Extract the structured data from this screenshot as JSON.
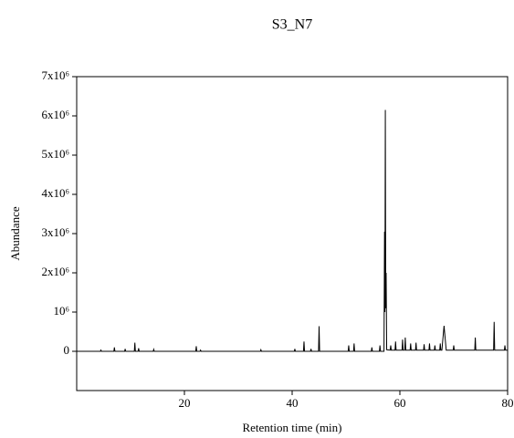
{
  "chart_data": {
    "type": "line",
    "title": "S3_N7",
    "x_label": "Retention time (min)",
    "y_label": "Abundance",
    "color": "#000000",
    "x": [
      0,
      4.4,
      4.5,
      4.6,
      6.9,
      7,
      7.1,
      8.9,
      9,
      9.1,
      10.7,
      10.8,
      10.9,
      11.4,
      11.5,
      11.6,
      14.2,
      14.3,
      14.4,
      22.1,
      22.2,
      22.3,
      22.9,
      23,
      23.1,
      34.1,
      34.2,
      34.3,
      40.4,
      40.5,
      40.6,
      42.1,
      42.2,
      42.3,
      43.4,
      43.5,
      43.6,
      44.9,
      45,
      45.1,
      50.4,
      50.5,
      50.6,
      51.4,
      51.5,
      51.6,
      54.7,
      54.8,
      54.9,
      56.2,
      56.3,
      56.4,
      57.05,
      57.15,
      57.22,
      57.3,
      57.38,
      57.45,
      57.55,
      58.2,
      58.3,
      58.4,
      59.1,
      59.2,
      59.3,
      60.4,
      60.5,
      60.6,
      60.9,
      61,
      61.1,
      61.9,
      62,
      62.1,
      62.9,
      63,
      63.1,
      64.4,
      64.5,
      64.6,
      65.4,
      65.5,
      65.6,
      66.4,
      66.5,
      66.6,
      67.4,
      67.5,
      67.6,
      67.8,
      68.2,
      68.6,
      69.9,
      70,
      70.1,
      73.9,
      74,
      74.1,
      77.4,
      77.5,
      77.6,
      79.4,
      79.5,
      79.6,
      80
    ],
    "values": [
      0,
      0,
      30000,
      0,
      0,
      100000,
      0,
      0,
      60000,
      0,
      0,
      220000,
      0,
      0,
      80000,
      0,
      0,
      50000,
      0,
      0,
      130000,
      0,
      0,
      30000,
      0,
      0,
      40000,
      0,
      0,
      60000,
      0,
      0,
      250000,
      0,
      0,
      60000,
      0,
      0,
      640000,
      0,
      0,
      150000,
      0,
      0,
      200000,
      0,
      0,
      100000,
      0,
      0,
      150000,
      0,
      0,
      3050000,
      1000000,
      6150000,
      1100000,
      2000000,
      40000,
      30000,
      150000,
      30000,
      30000,
      250000,
      30000,
      30000,
      300000,
      30000,
      30000,
      350000,
      30000,
      30000,
      200000,
      30000,
      30000,
      220000,
      30000,
      30000,
      180000,
      30000,
      30000,
      200000,
      30000,
      30000,
      150000,
      30000,
      30000,
      200000,
      30000,
      30000,
      650000,
      30000,
      30000,
      150000,
      30000,
      30000,
      350000,
      30000,
      30000,
      750000,
      30000,
      30000,
      150000,
      30000,
      30000
    ],
    "xlim": [
      0,
      80
    ],
    "xticks": [
      20,
      40,
      60,
      80
    ],
    "ylim": [
      -1000000,
      7000000
    ],
    "yticks": [
      0,
      {
        "value": 1000000,
        "label": "10⁶"
      },
      {
        "value": 2000000,
        "label": "2x10⁶"
      },
      {
        "value": 3000000,
        "label": "3x10⁶"
      },
      {
        "value": 4000000,
        "label": "4x10⁶"
      },
      {
        "value": 5000000,
        "label": "5x10⁶"
      },
      {
        "value": 6000000,
        "label": "6x10⁶"
      },
      {
        "value": 7000000,
        "label": "7x10⁶"
      }
    ]
  }
}
